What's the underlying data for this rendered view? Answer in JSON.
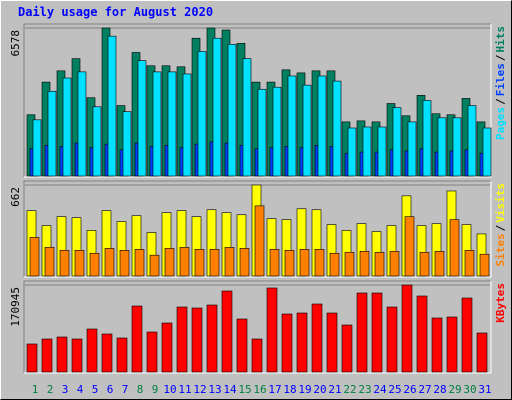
{
  "title": "Daily usage for August 2020",
  "legend_separator": "/",
  "categories": [
    "1",
    "2",
    "3",
    "4",
    "5",
    "6",
    "7",
    "8",
    "9",
    "10",
    "11",
    "12",
    "13",
    "14",
    "15",
    "16",
    "17",
    "18",
    "19",
    "20",
    "21",
    "22",
    "23",
    "24",
    "25",
    "26",
    "27",
    "28",
    "29",
    "30",
    "31"
  ],
  "highlight_categories": [
    "1",
    "2",
    "8",
    "9",
    "15",
    "16",
    "22",
    "23",
    "29",
    "30"
  ],
  "category_color": "#0000ff",
  "highlight_color": "#008040",
  "chart_data": [
    {
      "type": "bar",
      "ylim": [
        0,
        6578
      ],
      "yticks": [
        6578
      ],
      "grid": true,
      "series": [
        {
          "name": "Hits",
          "color": "#008060",
          "values": [
            2748,
            4190,
            4686,
            5226,
            3500,
            6578,
            3154,
            5497,
            4911,
            4911,
            4866,
            6127,
            6578,
            6488,
            5902,
            4190,
            4190,
            4731,
            4596,
            4686,
            4686,
            2433,
            2478,
            2433,
            3244,
            2703,
            3604,
            2793,
            2748,
            3469,
            2433
          ]
        },
        {
          "name": "Files",
          "color": "#0040ff",
          "values": [
            1250,
            1400,
            1350,
            1500,
            1300,
            1450,
            1200,
            1500,
            1350,
            1400,
            1300,
            1450,
            1550,
            1500,
            1400,
            1250,
            1300,
            1350,
            1300,
            1400,
            1350,
            1050,
            1100,
            1100,
            1200,
            1150,
            1250,
            1100,
            1150,
            1200,
            1050
          ]
        },
        {
          "name": "Pages",
          "color": "#00e0ff",
          "values": [
            2523,
            3785,
            4370,
            4641,
            3100,
            6218,
            2883,
            5136,
            4641,
            4641,
            4550,
            5542,
            6127,
            5857,
            5226,
            3875,
            3965,
            4460,
            4055,
            4460,
            4235,
            2163,
            2208,
            2208,
            3064,
            2433,
            3379,
            2613,
            2613,
            3154,
            2163
          ]
        }
      ]
    },
    {
      "type": "bar",
      "ylim": [
        0,
        662
      ],
      "yticks": [
        662
      ],
      "grid": true,
      "series": [
        {
          "name": "Visits",
          "color": "#ffff00",
          "values": [
            477,
            370,
            434,
            427,
            335,
            477,
            399,
            441,
            320,
            463,
            477,
            434,
            484,
            463,
            448,
            662,
            420,
            413,
            491,
            484,
            377,
            335,
            384,
            327,
            370,
            584,
            370,
            384,
            619,
            377,
            310
          ]
        },
        {
          "name": "Sites",
          "color": "#ff8000",
          "values": [
            285,
            214,
            192,
            192,
            171,
            206,
            192,
            199,
            157,
            206,
            213,
            199,
            199,
            213,
            206,
            512,
            199,
            192,
            199,
            199,
            171,
            178,
            185,
            178,
            185,
            434,
            178,
            185,
            413,
            192,
            164
          ]
        }
      ]
    },
    {
      "type": "bar",
      "ylim": [
        0,
        170945
      ],
      "yticks": [
        170945
      ],
      "grid": true,
      "series": [
        {
          "name": "KBytes",
          "color": "#ff0000",
          "values": [
            56335,
            66047,
            69932,
            66047,
            85473,
            75760,
            67990,
            130151,
            79645,
            97128,
            128206,
            126264,
            132094,
            159290,
            104898,
            66047,
            165118,
            114612,
            116555,
            134036,
            116555,
            93243,
            155405,
            155405,
            128206,
            170945,
            149577,
            106841,
            108783,
            145692,
            77702
          ]
        }
      ]
    }
  ]
}
